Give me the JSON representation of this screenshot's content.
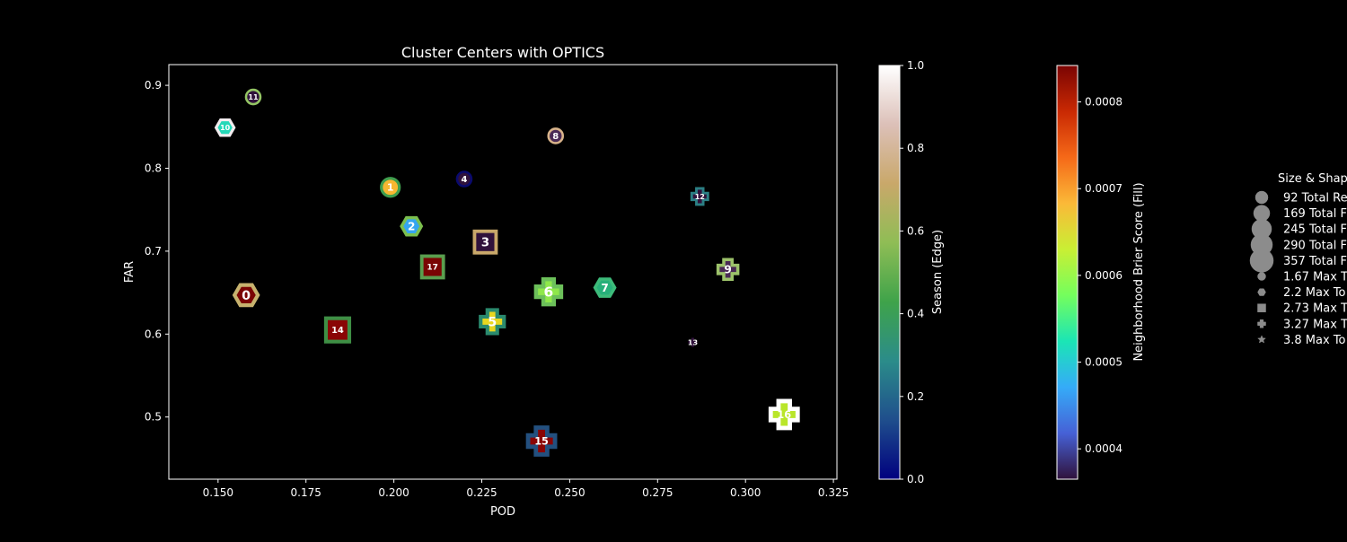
{
  "chart_data": {
    "type": "scatter",
    "title": "Cluster Centers with OPTICS",
    "xlabel": "POD",
    "ylabel": "FAR",
    "xlim": [
      0.136,
      0.326
    ],
    "ylim": [
      0.425,
      0.925
    ],
    "xticks": [
      "0.150",
      "0.175",
      "0.200",
      "0.225",
      "0.250",
      "0.275",
      "0.300",
      "0.325"
    ],
    "yticks": [
      "0.5",
      "0.6",
      "0.7",
      "0.8",
      "0.9"
    ],
    "grid": false,
    "points": [
      {
        "label": "0",
        "x": 0.158,
        "y": 0.647,
        "shape": "hexagon",
        "fill": "#7a0403",
        "edge": "#c7b26e",
        "size": 13
      },
      {
        "label": "1",
        "x": 0.199,
        "y": 0.777,
        "shape": "circle",
        "fill": "#f7b731",
        "edge": "#3f9e4e",
        "size": 10
      },
      {
        "label": "2",
        "x": 0.205,
        "y": 0.73,
        "shape": "hexagon",
        "fill": "#35a5f0",
        "edge": "#7bbf4e",
        "size": 11
      },
      {
        "label": "3",
        "x": 0.226,
        "y": 0.711,
        "shape": "square",
        "fill": "#30123b",
        "edge": "#c9a86a",
        "size": 12
      },
      {
        "label": "4",
        "x": 0.22,
        "y": 0.787,
        "shape": "circle",
        "fill": "#30123b",
        "edge": "#0a0a6e",
        "size": 8
      },
      {
        "label": "5",
        "x": 0.228,
        "y": 0.615,
        "shape": "plus",
        "fill": "#e8d71f",
        "edge": "#2a8a6e",
        "size": 13
      },
      {
        "label": "6",
        "x": 0.244,
        "y": 0.651,
        "shape": "plus",
        "fill": "#8fe84a",
        "edge": "#6cc05a",
        "size": 14
      },
      {
        "label": "7",
        "x": 0.26,
        "y": 0.656,
        "shape": "hexagon",
        "fill": "#27b07a",
        "edge": "#3dbb7a",
        "size": 11
      },
      {
        "label": "8",
        "x": 0.246,
        "y": 0.839,
        "shape": "circle",
        "fill": "#4a2a55",
        "edge": "#d8b38a",
        "size": 8
      },
      {
        "label": "9",
        "x": 0.295,
        "y": 0.678,
        "shape": "plus",
        "fill": "#4a2a55",
        "edge": "#9cc26a",
        "size": 11
      },
      {
        "label": "10",
        "x": 0.152,
        "y": 0.849,
        "shape": "hexagon",
        "fill": "#25d8b8",
        "edge": "#f2ecef",
        "size": 10
      },
      {
        "label": "11",
        "x": 0.16,
        "y": 0.886,
        "shape": "circle",
        "fill": "#30123b",
        "edge": "#94c564",
        "size": 8
      },
      {
        "label": "12",
        "x": 0.287,
        "y": 0.766,
        "shape": "plus",
        "fill": "#30123b",
        "edge": "#2b7f84",
        "size": 9
      },
      {
        "label": "13",
        "x": 0.285,
        "y": 0.59,
        "shape": "plus",
        "fill": "#30123b",
        "edge": "#000000",
        "size": 6
      },
      {
        "label": "14",
        "x": 0.184,
        "y": 0.605,
        "shape": "square",
        "fill": "#8a0505",
        "edge": "#3e8f45",
        "size": 13
      },
      {
        "label": "15",
        "x": 0.242,
        "y": 0.471,
        "shape": "plus",
        "fill": "#8a0505",
        "edge": "#23507f",
        "size": 15
      },
      {
        "label": "16",
        "x": 0.311,
        "y": 0.503,
        "shape": "plus",
        "fill": "#b9e62a",
        "edge": "#ffffff",
        "size": 15
      },
      {
        "label": "17",
        "x": 0.211,
        "y": 0.681,
        "shape": "square",
        "fill": "#7a0403",
        "edge": "#5a9e4e",
        "size": 12
      }
    ],
    "colorbar_edge": {
      "label": "Season (Edge)",
      "range": [
        0,
        1
      ],
      "ticks": [
        "0.0",
        "0.2",
        "0.4",
        "0.6",
        "0.8",
        "1.0"
      ],
      "colors": [
        "#00007f",
        "#1f4e8c",
        "#2b8c8a",
        "#3fa34a",
        "#8fbd55",
        "#c9a86a",
        "#dcc0b8",
        "#ffffff"
      ]
    },
    "colorbar_fill": {
      "label": "Neighborhood Brier Score (Fill)",
      "range": [
        0.000365,
        0.000842
      ],
      "ticks": [
        "0.0004",
        "0.0005",
        "0.0006",
        "0.0007",
        "0.0008"
      ],
      "tick_values": [
        0.0004,
        0.0005,
        0.0006,
        0.0007,
        0.0008
      ],
      "colors": [
        "#30123b",
        "#4661d6",
        "#35abf8",
        "#1be5b5",
        "#74fe5d",
        "#c9ef34",
        "#fbb938",
        "#f56918",
        "#c92903",
        "#7a0403"
      ]
    },
    "legend": {
      "title": "Size & Shap",
      "placement": "right",
      "items": [
        {
          "text": "92 Total Re",
          "marker": "circle",
          "size": 7
        },
        {
          "text": "169 Total F",
          "marker": "circle",
          "size": 9
        },
        {
          "text": "245 Total F",
          "marker": "circle",
          "size": 11
        },
        {
          "text": "290 Total F",
          "marker": "circle",
          "size": 12
        },
        {
          "text": "357 Total F",
          "marker": "circle",
          "size": 13
        },
        {
          "text": "1.67 Max T",
          "marker": "circle",
          "size": 4.5
        },
        {
          "text": "2.2 Max To",
          "marker": "hexagon",
          "size": 4.5
        },
        {
          "text": "2.73 Max T",
          "marker": "square",
          "size": 4.5
        },
        {
          "text": "3.27 Max T",
          "marker": "plus",
          "size": 4.5
        },
        {
          "text": "3.8 Max To",
          "marker": "star",
          "size": 4.5
        }
      ]
    }
  }
}
